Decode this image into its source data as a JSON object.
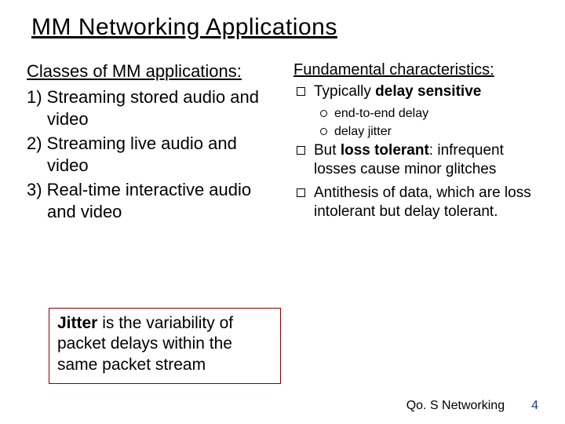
{
  "title": "MM Networking Applications",
  "left": {
    "heading": "Classes of MM applications:",
    "items": [
      "1) Streaming stored audio and video",
      "2) Streaming live audio and video",
      "3) Real-time interactive audio and video"
    ]
  },
  "right": {
    "heading": "Fundamental characteristics:",
    "b1_prefix": "Typically ",
    "b1_bold": "delay sensitive",
    "subs": [
      "end-to-end delay",
      "delay jitter"
    ],
    "b2_prefix": "But ",
    "b2_bold": "loss tolerant",
    "b2_suffix": ": infrequent losses cause minor glitches",
    "b3": "Antithesis of data, which are loss intolerant but delay tolerant."
  },
  "jitter": {
    "bold": "Jitter",
    "rest": " is the variability of packet delays within the same packet stream"
  },
  "footer": {
    "label": "Qo. S Networking",
    "page": "4"
  },
  "colors": {
    "box_border": "#8b0000",
    "page_num": "#1a3c8b"
  }
}
